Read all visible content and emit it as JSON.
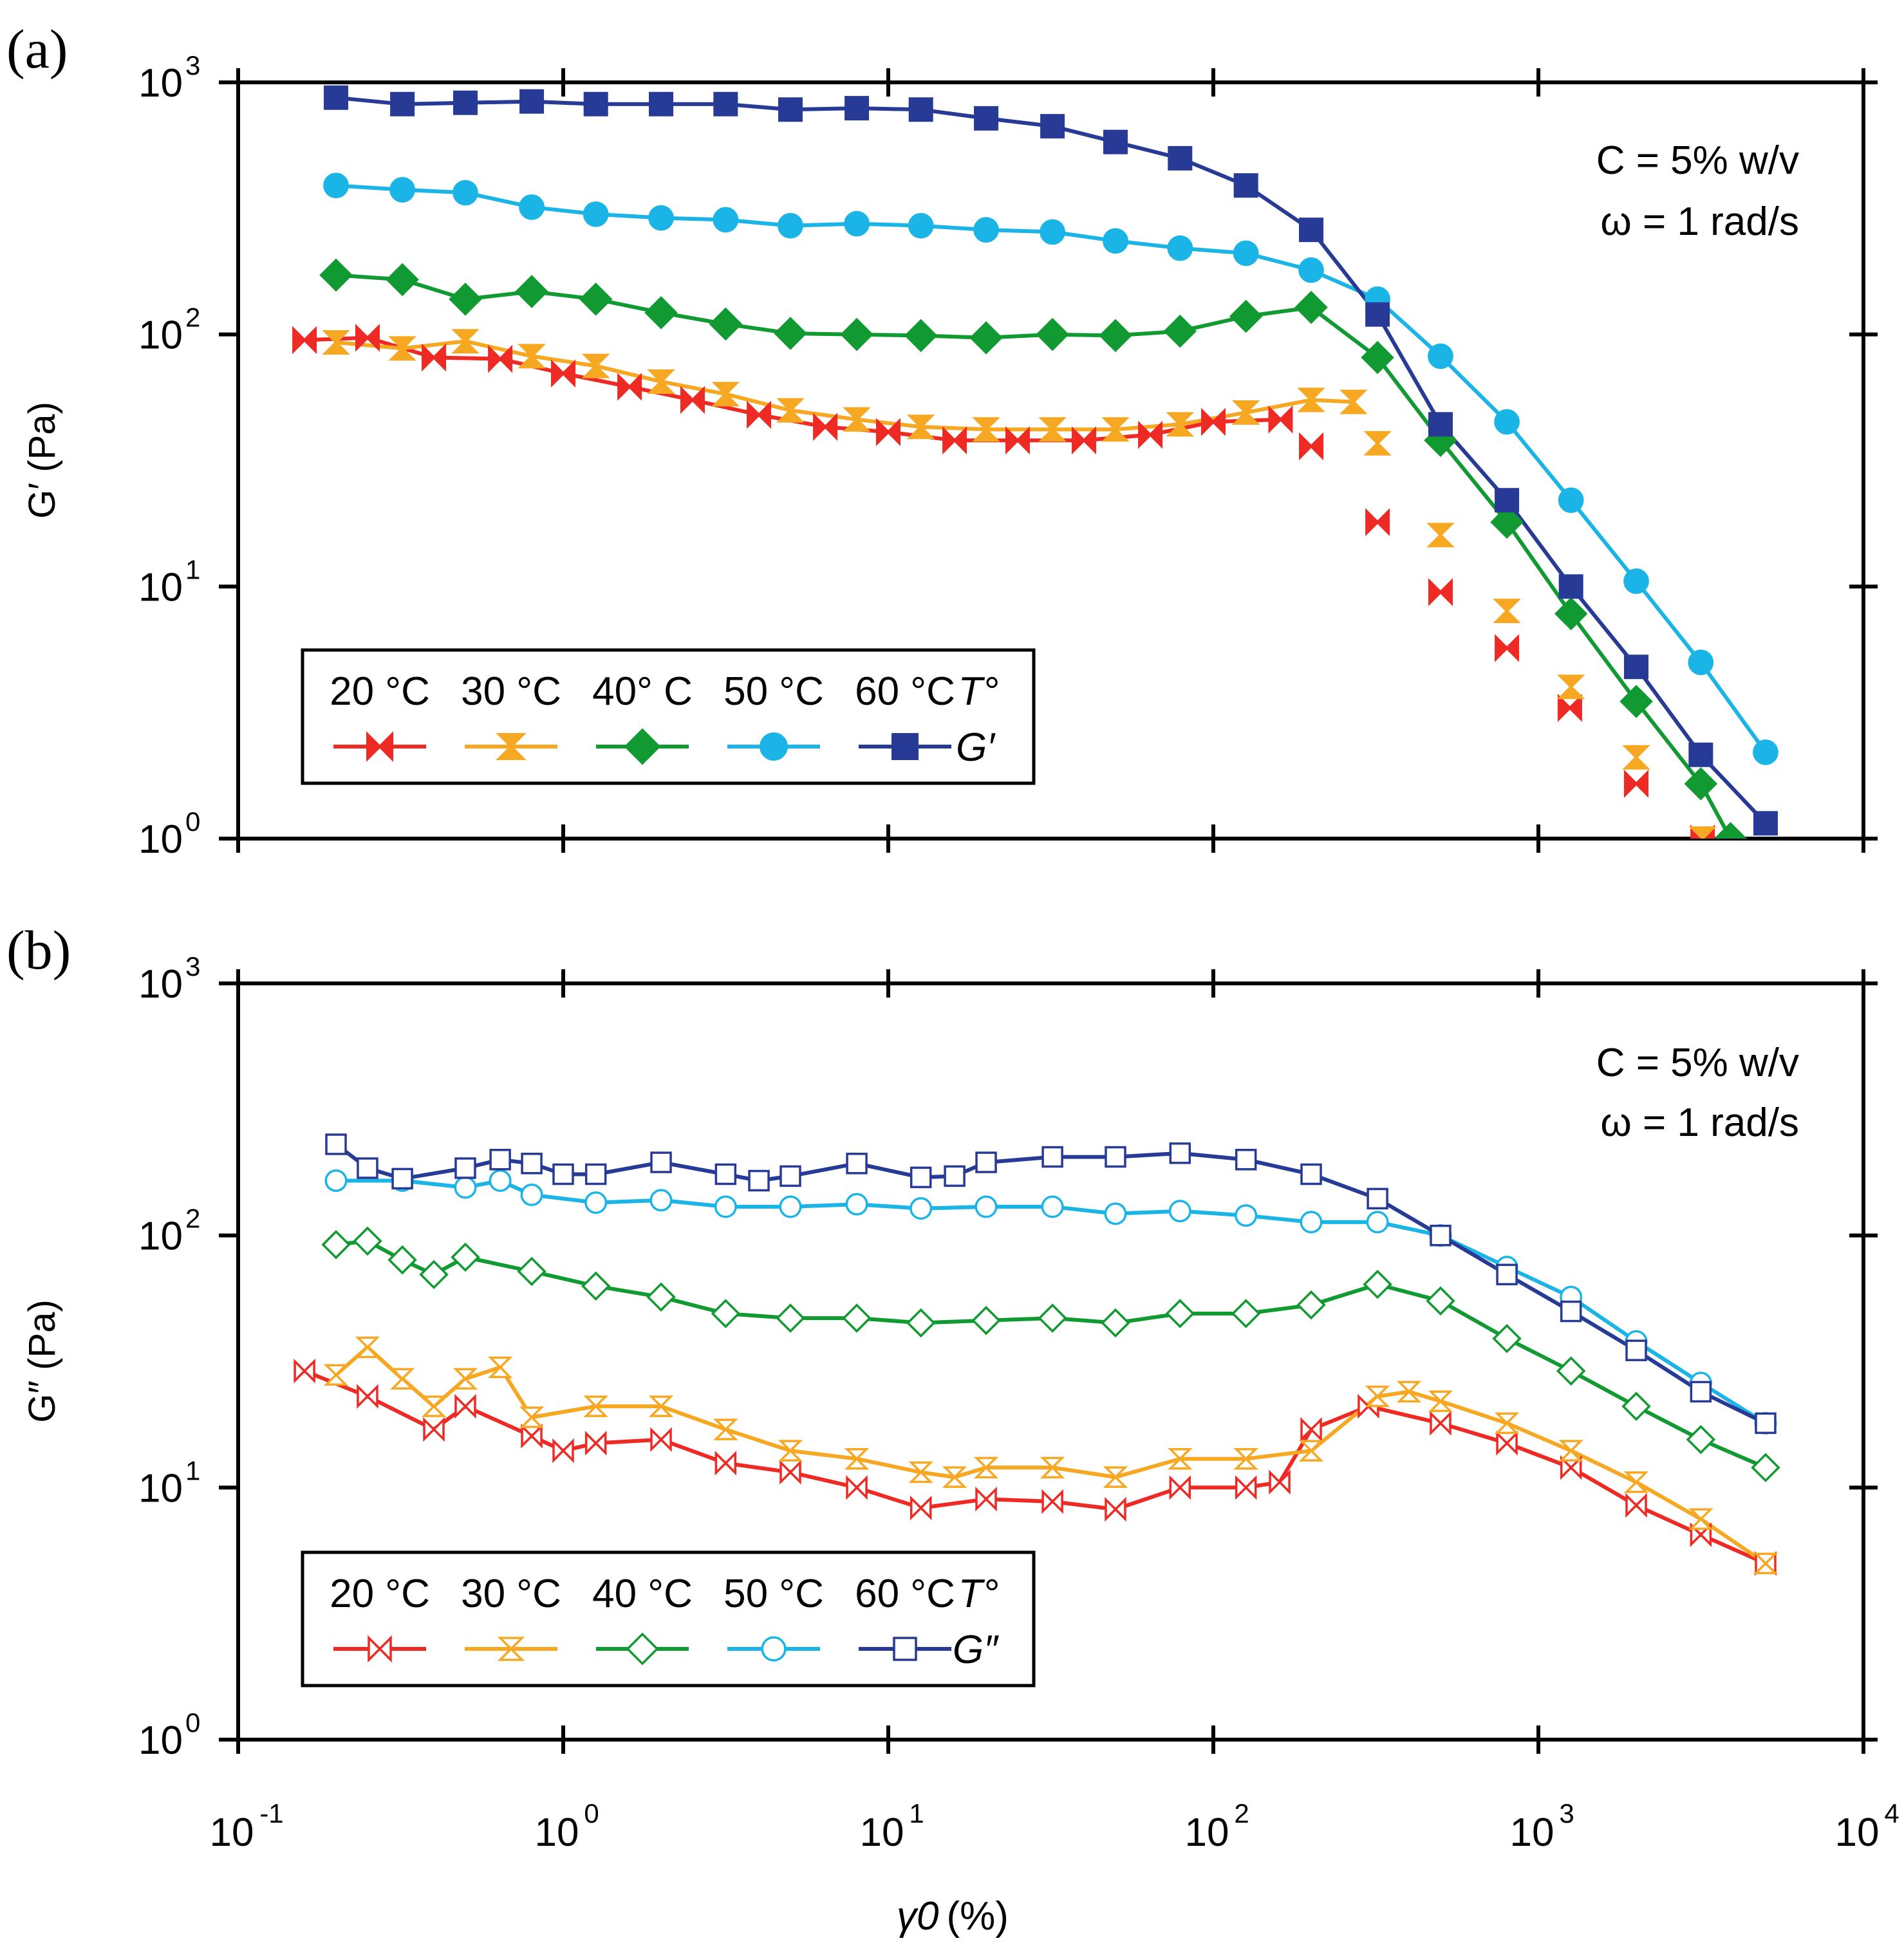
{
  "chart_data": [
    {
      "type": "line",
      "panel_label": "(a)",
      "scale": "log-log",
      "xlim": [
        0.1,
        10000
      ],
      "ylim": [
        1,
        1000
      ],
      "x_ticks": [
        {
          "base": "10",
          "exp": "-1"
        },
        {
          "base": "10",
          "exp": "0"
        },
        {
          "base": "10",
          "exp": "1"
        },
        {
          "base": "10",
          "exp": "2"
        },
        {
          "base": "10",
          "exp": "3"
        },
        {
          "base": "10",
          "exp": "4"
        }
      ],
      "y_ticks": [
        {
          "base": "10",
          "exp": "0"
        },
        {
          "base": "10",
          "exp": "1"
        },
        {
          "base": "10",
          "exp": "2"
        },
        {
          "base": "10",
          "exp": "3"
        }
      ],
      "ylabel": "G′ (Pa)",
      "annotation": [
        "C = 5% w/v",
        "ω = 1 rad/s"
      ],
      "legend_headers": [
        "20 °C",
        "30 °C",
        "40° C",
        "50 °C",
        "60 °C",
        "T°"
      ],
      "legend_quantity": "G′",
      "filled": true,
      "series": [
        {
          "name": "20 °C",
          "color": "#ee2a24",
          "marker": "bowtie",
          "line_to": 161,
          "x": [
            0.16,
            0.25,
            0.4,
            0.64,
            1.0,
            1.6,
            2.5,
            4.0,
            6.4,
            10,
            16,
            25,
            40,
            64,
            100,
            161,
            200,
            320,
            500,
            800,
            1250,
            2000,
            3200
          ],
          "y": [
            95,
            97,
            81,
            80,
            70,
            62,
            55,
            48,
            43,
            41,
            38,
            38,
            38,
            40,
            45,
            46,
            36,
            18,
            9.5,
            5.7,
            3.3,
            1.65,
            1.0
          ]
        },
        {
          "name": "30 °C",
          "color": "#f7a823",
          "marker": "hourglass",
          "line_to": 270,
          "x": [
            0.2,
            0.32,
            0.5,
            0.8,
            1.26,
            2.0,
            3.16,
            5.0,
            8.0,
            12.6,
            20,
            32,
            50,
            79,
            126,
            200,
            270,
            320,
            500,
            800,
            1260,
            2000,
            3200
          ],
          "y": [
            93,
            88,
            94,
            82,
            75,
            65,
            58,
            50,
            46,
            43,
            42,
            42,
            42,
            44,
            49,
            55,
            54,
            37,
            16,
            8,
            4,
            2.1,
            1.0
          ]
        },
        {
          "name": "40 °C",
          "color": "#119a31",
          "marker": "diamond",
          "line_to": 3900,
          "x": [
            0.2,
            0.32,
            0.5,
            0.8,
            1.26,
            2.0,
            3.16,
            5.0,
            8.0,
            12.6,
            20,
            32,
            50,
            79,
            126,
            200,
            320,
            500,
            800,
            1260,
            2000,
            3160,
            3900
          ],
          "y": [
            172,
            165,
            138,
            148,
            138,
            122,
            110,
            101,
            100,
            99,
            97,
            100,
            99,
            103,
            118,
            128,
            81,
            38,
            18,
            7.8,
            3.5,
            1.65,
            1.0
          ]
        },
        {
          "name": "50 °C",
          "color": "#1ab5e6",
          "marker": "circle",
          "line_to": 5000,
          "x": [
            0.2,
            0.32,
            0.5,
            0.8,
            1.26,
            2.0,
            3.16,
            5.0,
            8.0,
            12.6,
            20,
            32,
            50,
            79,
            126,
            200,
            320,
            500,
            800,
            1260,
            2000,
            3160,
            5000
          ],
          "y": [
            390,
            375,
            365,
            320,
            300,
            290,
            285,
            270,
            275,
            270,
            260,
            255,
            235,
            220,
            210,
            180,
            138,
            82,
            45,
            22,
            10.5,
            5.0,
            2.2
          ]
        },
        {
          "name": "60 °C",
          "color": "#273b96",
          "marker": "square",
          "line_to": 5000,
          "x": [
            0.2,
            0.32,
            0.5,
            0.8,
            1.26,
            2.0,
            3.16,
            5.0,
            8.0,
            12.6,
            20,
            32,
            50,
            79,
            126,
            200,
            320,
            500,
            800,
            1260,
            2000,
            3160,
            5000
          ],
          "y": [
            870,
            820,
            830,
            840,
            820,
            820,
            820,
            780,
            790,
            780,
            720,
            670,
            580,
            500,
            390,
            260,
            120,
            44,
            22,
            10,
            4.8,
            2.15,
            1.15
          ]
        }
      ]
    },
    {
      "type": "line",
      "panel_label": "(b)",
      "scale": "log-log",
      "xlim": [
        0.1,
        10000
      ],
      "ylim": [
        1,
        1000
      ],
      "x_ticks": [
        {
          "base": "10",
          "exp": "-1"
        },
        {
          "base": "10",
          "exp": "0"
        },
        {
          "base": "10",
          "exp": "1"
        },
        {
          "base": "10",
          "exp": "2"
        },
        {
          "base": "10",
          "exp": "3"
        },
        {
          "base": "10",
          "exp": "4"
        }
      ],
      "y_ticks": [
        {
          "base": "10",
          "exp": "0"
        },
        {
          "base": "10",
          "exp": "1"
        },
        {
          "base": "10",
          "exp": "2"
        },
        {
          "base": "10",
          "exp": "3"
        }
      ],
      "xlabel_symbol": "γ0",
      "xlabel_unit": "(%)",
      "ylabel": "G″ (Pa)",
      "annotation": [
        "C = 5% w/v",
        "ω = 1 rad/s"
      ],
      "legend_headers": [
        "20 °C",
        "30 °C",
        "40 °C",
        "50 °C",
        "60 °C",
        "T°"
      ],
      "legend_quantity": "G″",
      "filled": false,
      "series": [
        {
          "name": "20 °C",
          "color": "#ee2a24",
          "marker": "bowtie",
          "x": [
            0.16,
            0.25,
            0.4,
            0.5,
            0.8,
            1.0,
            1.26,
            2.0,
            3.16,
            5.0,
            8.0,
            12.6,
            20,
            32,
            50,
            79,
            126,
            160,
            200,
            300,
            500,
            800,
            1260,
            2000,
            3160,
            5000
          ],
          "y": [
            29,
            23,
            17,
            21,
            16,
            14,
            15,
            15.5,
            12.5,
            11.5,
            10,
            8.3,
            9,
            8.8,
            8.2,
            10,
            10,
            10.5,
            17,
            21,
            18,
            15,
            12,
            8.5,
            6.5,
            5
          ]
        },
        {
          "name": "30 °C",
          "color": "#f7a823",
          "marker": "hourglass",
          "x": [
            0.2,
            0.25,
            0.32,
            0.4,
            0.5,
            0.64,
            0.8,
            1.26,
            2.0,
            3.16,
            5.0,
            8.0,
            12.6,
            16,
            20,
            32,
            50,
            79,
            126,
            200,
            320,
            400,
            500,
            800,
            1260,
            2000,
            3160,
            5000
          ],
          "y": [
            28,
            36,
            27,
            21,
            27,
            30,
            19,
            21,
            21,
            17,
            14,
            13,
            11.5,
            11,
            12,
            12,
            11,
            13,
            13,
            14,
            23,
            24,
            22,
            18,
            14,
            10.5,
            7.5,
            5
          ]
        },
        {
          "name": "40 °C",
          "color": "#119a31",
          "marker": "diamond",
          "x": [
            0.2,
            0.25,
            0.32,
            0.4,
            0.5,
            0.8,
            1.26,
            2.0,
            3.16,
            5.0,
            8.0,
            12.6,
            20,
            32,
            50,
            79,
            126,
            200,
            320,
            500,
            800,
            1260,
            2000,
            3160,
            5000
          ],
          "y": [
            92,
            95,
            80,
            70,
            82,
            72,
            63,
            57,
            49,
            47,
            47,
            45,
            46,
            47,
            45,
            49,
            49,
            53,
            64,
            55,
            39,
            29,
            21,
            15.5,
            12
          ]
        },
        {
          "name": "50 °C",
          "color": "#1ab5e6",
          "marker": "circle",
          "x": [
            0.2,
            0.32,
            0.5,
            0.64,
            0.8,
            1.26,
            2.0,
            3.16,
            5.0,
            8.0,
            12.6,
            20,
            32,
            50,
            79,
            126,
            200,
            320,
            500,
            800,
            1260,
            2000,
            3160,
            5000
          ],
          "y": [
            165,
            165,
            155,
            165,
            145,
            135,
            138,
            130,
            130,
            133,
            128,
            130,
            130,
            122,
            125,
            120,
            113,
            113,
            100,
            75,
            57,
            38,
            26,
            18
          ]
        },
        {
          "name": "60 °C",
          "color": "#273b96",
          "marker": "square",
          "x": [
            0.2,
            0.25,
            0.32,
            0.5,
            0.64,
            0.8,
            1.0,
            1.26,
            2.0,
            3.16,
            4.0,
            5.0,
            8.0,
            12.6,
            16,
            20,
            32,
            50,
            79,
            126,
            200,
            320,
            500,
            800,
            1260,
            2000,
            3160,
            5000
          ],
          "y": [
            230,
            185,
            168,
            185,
            200,
            193,
            175,
            175,
            195,
            175,
            165,
            172,
            193,
            170,
            172,
            195,
            205,
            205,
            212,
            200,
            175,
            140,
            100,
            70,
            50,
            35,
            24,
            18
          ]
        }
      ]
    }
  ]
}
